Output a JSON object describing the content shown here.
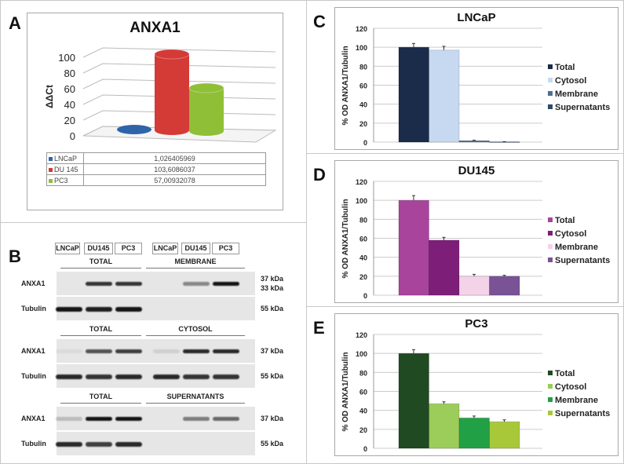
{
  "panel_labels": {
    "a": "A",
    "b": "B",
    "c": "C",
    "d": "D",
    "e": "E"
  },
  "chart_data": [
    {
      "id": "A",
      "type": "bar",
      "style": "3d-cylinder",
      "title": "ANXA1",
      "ylabel": "ΔΔCt",
      "ylim": [
        0,
        100
      ],
      "yticks": [
        "0",
        "20",
        "40",
        "60",
        "80",
        "100"
      ],
      "categories": [
        "LNCaP",
        "DU 145",
        "PC3"
      ],
      "values": [
        1.026405969,
        103.6086037,
        57.00932078
      ],
      "table_values": [
        "1,026405969",
        "103,6086037",
        "57,00932078"
      ],
      "colors": [
        "#2e64a8",
        "#d43a36",
        "#8fbf36"
      ]
    },
    {
      "id": "C",
      "type": "bar",
      "title": "LNCaP",
      "ylabel": "% OD ANXA1/Tubulin",
      "ylim": [
        0,
        120
      ],
      "yticks": [
        "0",
        "20",
        "40",
        "60",
        "80",
        "100",
        "120"
      ],
      "categories": [
        "Total",
        "Cytosol",
        "Membrane",
        "Supernatants"
      ],
      "values": [
        100,
        97,
        1.5,
        0.3
      ],
      "errors": [
        4,
        4,
        0.5,
        0.2
      ],
      "colors": [
        "#1b2b4a",
        "#c6d9f0",
        "#4f6f8f",
        "#2f4a68"
      ],
      "legend": "right"
    },
    {
      "id": "D",
      "type": "bar",
      "title": "DU145",
      "ylabel": "% OD ANXA1/Tubulin",
      "ylim": [
        0,
        120
      ],
      "yticks": [
        "0",
        "20",
        "40",
        "60",
        "80",
        "100",
        "120"
      ],
      "categories": [
        "Total",
        "Cytosol",
        "Membrane",
        "Supernatants"
      ],
      "values": [
        100,
        58,
        20,
        20
      ],
      "errors": [
        5,
        3,
        2,
        1
      ],
      "colors": [
        "#a8449c",
        "#7d1f78",
        "#f4d2e8",
        "#7a5296"
      ],
      "legend": "right"
    },
    {
      "id": "E",
      "type": "bar",
      "title": "PC3",
      "ylabel": "% OD ANXA1/Tubulin",
      "ylim": [
        0,
        120
      ],
      "yticks": [
        "0",
        "20",
        "40",
        "60",
        "80",
        "100",
        "120"
      ],
      "categories": [
        "Total",
        "Cytosol",
        "Membrane",
        "Supernatants"
      ],
      "values": [
        100,
        47,
        32,
        28
      ],
      "errors": [
        4,
        2,
        2,
        2
      ],
      "colors": [
        "#1f4a22",
        "#9ccc5a",
        "#22a046",
        "#a8c83a"
      ],
      "legend": "right"
    }
  ],
  "blot": {
    "lanes": [
      "LNCaP",
      "DU145",
      "PC3",
      "LNCaP",
      "DU145",
      "PC3"
    ],
    "sections": [
      {
        "left": "TOTAL",
        "right": "MEMBRANE",
        "anxa1_label": "ANXA1",
        "tubulin_label": "Tubulin",
        "anxa1_kda": "37 kDa",
        "anxa1_kda2": "33 kDa",
        "tubulin_kda": "55 kDa",
        "anxa1_bands": [
          0,
          0.85,
          0.85,
          0,
          0.45,
          1
        ],
        "tubulin_bands": [
          1,
          0.95,
          1,
          0,
          0,
          0
        ]
      },
      {
        "left": "TOTAL",
        "right": "CYTOSOL",
        "anxa1_label": "ANXA1",
        "tubulin_label": "Tubulin",
        "anxa1_kda": "37 kDa",
        "tubulin_kda": "55 kDa",
        "anxa1_bands": [
          0.05,
          0.7,
          0.8,
          0.1,
          0.9,
          0.9
        ],
        "tubulin_bands": [
          0.9,
          0.85,
          0.9,
          0.9,
          0.85,
          0.85
        ]
      },
      {
        "left": "TOTAL",
        "right": "SUPERNATANTS",
        "anxa1_label": "ANXA1",
        "tubulin_label": "Tubulin",
        "anxa1_kda": "37 kDa",
        "tubulin_kda": "55 kDa",
        "anxa1_bands": [
          0.2,
          1,
          1,
          0,
          0.5,
          0.6
        ],
        "tubulin_bands": [
          0.9,
          0.8,
          0.9,
          0,
          0,
          0
        ]
      }
    ]
  }
}
